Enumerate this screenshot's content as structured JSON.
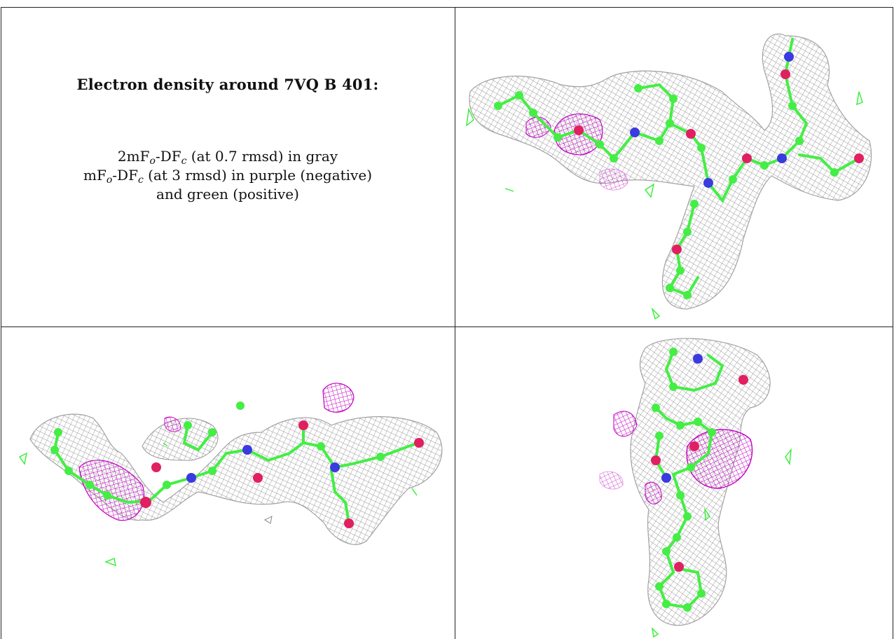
{
  "caption": {
    "title": "Electron density around 7VQ B 401:",
    "line1_prefix": "2mF",
    "line1_sub1": "o",
    "line1_mid": "-DF",
    "line1_sub2": "c",
    "line1_suffix": " (at 0.7 rmsd) in gray",
    "line2_prefix": "mF",
    "line2_sub1": "o",
    "line2_mid": "-DF",
    "line2_sub2": "c",
    "line2_suffix": " (at 3 rmsd) in purple (negative)",
    "line3": "and green (positive)"
  },
  "colors": {
    "mesh_2fofc": "#9a9a9a",
    "fofc_negative": "#c000c0",
    "fofc_positive": "#33ee33",
    "carbon": "#44ee44",
    "nitrogen": "#3a3ae0",
    "oxygen": "#e02060",
    "border": "#222222"
  }
}
